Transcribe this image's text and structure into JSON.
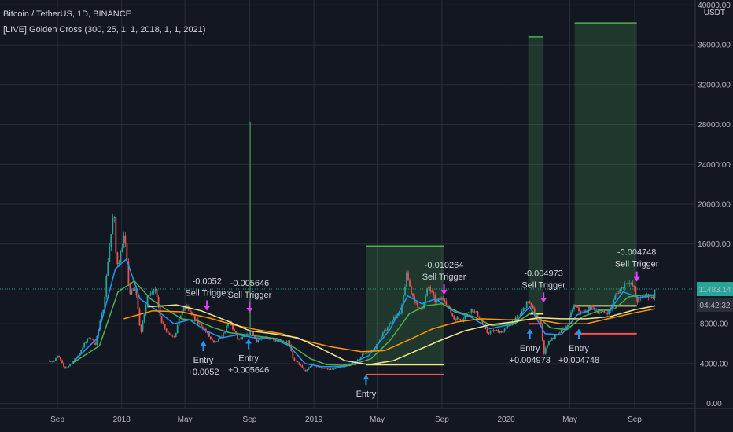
{
  "header": {
    "title": "Bitcoin / TetherUS, 1D, BINANCE",
    "indicator": "[LIVE] Golden Cross (300, 25, 1, 1, 2018, 1, 1, 2021)",
    "currency": "USDT"
  },
  "price_axis": {
    "ticks": [
      {
        "value": 40000,
        "label": "40000.00"
      },
      {
        "value": 36000,
        "label": "36000.00"
      },
      {
        "value": 32000,
        "label": "32000.00"
      },
      {
        "value": 28000,
        "label": "28000.00"
      },
      {
        "value": 24000,
        "label": "24000.00"
      },
      {
        "value": 20000,
        "label": "20000.00"
      },
      {
        "value": 16000,
        "label": "16000.00"
      },
      {
        "value": 8000,
        "label": "8000.00"
      },
      {
        "value": 4000,
        "label": "4000.00"
      },
      {
        "value": 0,
        "label": "0.00"
      }
    ],
    "current_price": {
      "value": 11483.14,
      "label": "11483.14",
      "color": "#26a69a"
    },
    "countdown": "04:42:32"
  },
  "time_axis": {
    "labels": [
      {
        "date": "2017-09-01",
        "label": "Sep"
      },
      {
        "date": "2018-01-01",
        "label": "2018"
      },
      {
        "date": "2018-05-01",
        "label": "May"
      },
      {
        "date": "2018-09-01",
        "label": "Sep"
      },
      {
        "date": "2019-01-01",
        "label": "2019"
      },
      {
        "date": "2019-05-01",
        "label": "May"
      },
      {
        "date": "2019-09-01",
        "label": "Sep"
      },
      {
        "date": "2020-01-01",
        "label": "2020"
      },
      {
        "date": "2020-05-01",
        "label": "May"
      },
      {
        "date": "2020-09-01",
        "label": "Sep"
      }
    ]
  },
  "chart_data": {
    "type": "candlestick",
    "x_range": [
      "2017-05-15",
      "2020-12-25"
    ],
    "ylim": [
      -500,
      40500
    ],
    "price_path": [
      [
        "2017-08-17",
        4300
      ],
      [
        "2017-08-25",
        4200
      ],
      [
        "2017-09-02",
        4800
      ],
      [
        "2017-09-15",
        3500
      ],
      [
        "2017-09-25",
        3900
      ],
      [
        "2017-10-10",
        4800
      ],
      [
        "2017-10-20",
        5800
      ],
      [
        "2017-11-01",
        6700
      ],
      [
        "2017-11-12",
        6000
      ],
      [
        "2017-11-28",
        9800
      ],
      [
        "2017-12-07",
        15000
      ],
      [
        "2017-12-12",
        17000
      ],
      [
        "2017-12-17",
        19500
      ],
      [
        "2017-12-22",
        14000
      ],
      [
        "2017-12-28",
        14500
      ],
      [
        "2018-01-06",
        17000
      ],
      [
        "2018-01-16",
        11000
      ],
      [
        "2018-01-28",
        11500
      ],
      [
        "2018-02-06",
        6900
      ],
      [
        "2018-02-20",
        11000
      ],
      [
        "2018-03-05",
        11500
      ],
      [
        "2018-03-18",
        8200
      ],
      [
        "2018-04-01",
        6900
      ],
      [
        "2018-04-12",
        6800
      ],
      [
        "2018-04-25",
        9300
      ],
      [
        "2018-05-05",
        9700
      ],
      [
        "2018-05-20",
        8400
      ],
      [
        "2018-06-05",
        7600
      ],
      [
        "2018-06-25",
        6000
      ],
      [
        "2018-07-10",
        6700
      ],
      [
        "2018-07-25",
        8200
      ],
      [
        "2018-08-10",
        6400
      ],
      [
        "2018-08-25",
        6700
      ],
      [
        "2018-09-05",
        7300
      ],
      [
        "2018-09-12",
        6300
      ],
      [
        "2018-10-01",
        6600
      ],
      [
        "2018-10-30",
        6300
      ],
      [
        "2018-11-14",
        6200
      ],
      [
        "2018-11-22",
        4500
      ],
      [
        "2018-12-05",
        3900
      ],
      [
        "2018-12-15",
        3200
      ],
      [
        "2018-12-28",
        3900
      ],
      [
        "2019-01-15",
        3600
      ],
      [
        "2019-02-05",
        3400
      ],
      [
        "2019-02-25",
        3800
      ],
      [
        "2019-03-20",
        4000
      ],
      [
        "2019-04-05",
        5000
      ],
      [
        "2019-04-25",
        5400
      ],
      [
        "2019-05-12",
        7000
      ],
      [
        "2019-05-30",
        8500
      ],
      [
        "2019-06-15",
        9000
      ],
      [
        "2019-06-26",
        12900
      ],
      [
        "2019-07-05",
        11200
      ],
      [
        "2019-07-17",
        9500
      ],
      [
        "2019-07-28",
        9800
      ],
      [
        "2019-08-06",
        11800
      ],
      [
        "2019-08-20",
        10200
      ],
      [
        "2019-09-05",
        10600
      ],
      [
        "2019-09-24",
        8500
      ],
      [
        "2019-10-10",
        8500
      ],
      [
        "2019-10-26",
        9500
      ],
      [
        "2019-11-10",
        8800
      ],
      [
        "2019-11-25",
        7100
      ],
      [
        "2019-12-10",
        7300
      ],
      [
        "2019-12-25",
        7200
      ],
      [
        "2020-01-10",
        8000
      ],
      [
        "2020-01-25",
        8700
      ],
      [
        "2020-02-12",
        10300
      ],
      [
        "2020-02-28",
        8700
      ],
      [
        "2020-03-08",
        8000
      ],
      [
        "2020-03-12",
        4800
      ],
      [
        "2020-03-20",
        6200
      ],
      [
        "2020-04-05",
        6800
      ],
      [
        "2020-04-25",
        7700
      ],
      [
        "2020-05-08",
        9800
      ],
      [
        "2020-05-25",
        9000
      ],
      [
        "2020-06-10",
        9700
      ],
      [
        "2020-06-28",
        9100
      ],
      [
        "2020-07-15",
        9200
      ],
      [
        "2020-07-28",
        11000
      ],
      [
        "2020-08-10",
        11800
      ],
      [
        "2020-08-17",
        12300
      ],
      [
        "2020-08-30",
        11700
      ],
      [
        "2020-09-05",
        10200
      ],
      [
        "2020-09-20",
        10900
      ],
      [
        "2020-10-05",
        10600
      ],
      [
        "2020-10-10",
        11483
      ]
    ],
    "series": [
      {
        "name": "",
        "color": "#2196f3",
        "values": [
          [
            "2017-10-01",
            4200
          ],
          [
            "2017-11-15",
            6500
          ],
          [
            "2017-12-20",
            13500
          ],
          [
            "2018-01-10",
            14500
          ],
          [
            "2018-02-05",
            10500
          ],
          [
            "2018-03-10",
            9300
          ],
          [
            "2018-04-10",
            8000
          ],
          [
            "2018-05-10",
            8400
          ],
          [
            "2018-06-10",
            7300
          ],
          [
            "2018-07-10",
            6600
          ],
          [
            "2018-08-10",
            6900
          ],
          [
            "2018-09-10",
            6600
          ],
          [
            "2018-10-15",
            6500
          ],
          [
            "2018-11-15",
            5800
          ],
          [
            "2018-12-15",
            4000
          ],
          [
            "2019-01-15",
            3700
          ],
          [
            "2019-03-01",
            3700
          ],
          [
            "2019-04-15",
            4800
          ],
          [
            "2019-05-25",
            7400
          ],
          [
            "2019-06-28",
            10800
          ],
          [
            "2019-07-25",
            10000
          ],
          [
            "2019-08-20",
            10500
          ],
          [
            "2019-09-25",
            9200
          ],
          [
            "2019-10-25",
            8700
          ],
          [
            "2019-12-01",
            7500
          ],
          [
            "2020-01-15",
            8000
          ],
          [
            "2020-02-15",
            9700
          ],
          [
            "2020-03-15",
            7000
          ],
          [
            "2020-04-15",
            6900
          ],
          [
            "2020-05-15",
            8900
          ],
          [
            "2020-06-15",
            9500
          ],
          [
            "2020-07-15",
            9300
          ],
          [
            "2020-08-10",
            11200
          ],
          [
            "2020-09-10",
            10600
          ],
          [
            "2020-10-10",
            10900
          ]
        ]
      },
      {
        "name": "",
        "color": "#4caf50",
        "values": [
          [
            "2017-10-01",
            4100
          ],
          [
            "2017-11-20",
            5800
          ],
          [
            "2017-12-25",
            11200
          ],
          [
            "2018-01-25",
            12300
          ],
          [
            "2018-02-25",
            10500
          ],
          [
            "2018-03-25",
            9500
          ],
          [
            "2018-04-25",
            8500
          ],
          [
            "2018-05-25",
            8300
          ],
          [
            "2018-06-25",
            7600
          ],
          [
            "2018-07-25",
            7100
          ],
          [
            "2018-08-25",
            6900
          ],
          [
            "2018-09-25",
            6700
          ],
          [
            "2018-10-25",
            6500
          ],
          [
            "2018-11-25",
            5600
          ],
          [
            "2018-12-25",
            4500
          ],
          [
            "2019-01-25",
            3900
          ],
          [
            "2019-03-10",
            3800
          ],
          [
            "2019-04-20",
            4500
          ],
          [
            "2019-05-25",
            6300
          ],
          [
            "2019-07-01",
            9000
          ],
          [
            "2019-08-01",
            9800
          ],
          [
            "2019-09-01",
            10000
          ],
          [
            "2019-10-01",
            9200
          ],
          [
            "2019-11-01",
            8700
          ],
          [
            "2019-12-05",
            7800
          ],
          [
            "2020-01-20",
            8100
          ],
          [
            "2020-02-20",
            9200
          ],
          [
            "2020-03-25",
            7600
          ],
          [
            "2020-04-25",
            7400
          ],
          [
            "2020-05-25",
            8700
          ],
          [
            "2020-06-25",
            9300
          ],
          [
            "2020-07-25",
            9500
          ],
          [
            "2020-08-20",
            10700
          ],
          [
            "2020-09-20",
            10900
          ],
          [
            "2020-10-10",
            10900
          ]
        ]
      },
      {
        "name": "",
        "color": "#ff9800",
        "values": [
          [
            "2018-01-05",
            8500
          ],
          [
            "2018-03-01",
            9300
          ],
          [
            "2018-04-25",
            9200
          ],
          [
            "2018-06-15",
            8600
          ],
          [
            "2018-08-01",
            7900
          ],
          [
            "2018-09-15",
            7400
          ],
          [
            "2018-11-01",
            7000
          ],
          [
            "2018-12-15",
            6300
          ],
          [
            "2019-02-01",
            5700
          ],
          [
            "2019-04-01",
            5200
          ],
          [
            "2019-05-15",
            5300
          ],
          [
            "2019-07-01",
            6400
          ],
          [
            "2019-08-15",
            7500
          ],
          [
            "2019-10-01",
            8200
          ],
          [
            "2019-11-15",
            8500
          ],
          [
            "2020-01-01",
            8400
          ],
          [
            "2020-03-01",
            8400
          ],
          [
            "2020-04-15",
            8000
          ],
          [
            "2020-06-01",
            8000
          ],
          [
            "2020-07-20",
            8600
          ],
          [
            "2020-09-01",
            9100
          ],
          [
            "2020-10-10",
            9500
          ]
        ]
      },
      {
        "name": "",
        "color": "#f0e68c",
        "values": [
          [
            "2018-02-20",
            9700
          ],
          [
            "2018-04-15",
            9900
          ],
          [
            "2018-06-01",
            9300
          ],
          [
            "2018-07-20",
            8300
          ],
          [
            "2018-09-01",
            7300
          ],
          [
            "2018-10-15",
            7000
          ],
          [
            "2018-12-01",
            6600
          ],
          [
            "2019-01-15",
            5500
          ],
          [
            "2019-03-01",
            4300
          ],
          [
            "2019-04-15",
            3900
          ],
          [
            "2019-06-01",
            4300
          ],
          [
            "2019-07-15",
            5300
          ],
          [
            "2019-09-01",
            6400
          ],
          [
            "2019-10-15",
            7300
          ],
          [
            "2019-12-01",
            7900
          ],
          [
            "2020-01-15",
            8200
          ],
          [
            "2020-03-01",
            8600
          ],
          [
            "2020-04-15",
            8500
          ],
          [
            "2020-06-01",
            8500
          ],
          [
            "2020-07-15",
            8700
          ],
          [
            "2020-09-01",
            9400
          ],
          [
            "2020-10-10",
            9800
          ]
        ]
      }
    ],
    "trade_zones": [
      {
        "start": "2019-04-10",
        "end": "2019-09-05",
        "bottom": 3900,
        "top": 15800,
        "target": 15800,
        "stop": 2900
      },
      {
        "start": "2020-02-12",
        "end": "2020-03-12",
        "bottom": 9000,
        "top": 36800,
        "target": 36800,
        "stop": 8000
      },
      {
        "start": "2020-05-10",
        "end": "2020-09-05",
        "bottom": 9800,
        "top": 38200,
        "target": 38200,
        "stop": 7000
      }
    ],
    "spike": {
      "date": "2018-09-02",
      "low": 7500,
      "high": 28300
    },
    "entries": [
      {
        "date": "2018-06-05",
        "price": 6200,
        "label": "Entry",
        "value": "+0.0052"
      },
      {
        "date": "2018-08-30",
        "price": 6400,
        "label": "Entry",
        "value": "+0.005646"
      },
      {
        "date": "2019-04-10",
        "price": 2800,
        "label": "Entry",
        "value": ""
      },
      {
        "date": "2020-02-15",
        "price": 7400,
        "label": "Entry",
        "value": "+0.004973"
      },
      {
        "date": "2020-05-18",
        "price": 7400,
        "label": "Entry",
        "value": "+0.004748"
      }
    ],
    "sell_triggers": [
      {
        "date": "2018-06-12",
        "price": 9400,
        "label": "Sell Trigger",
        "value": "-0.0052"
      },
      {
        "date": "2018-09-01",
        "price": 9200,
        "label": "Sell Trigger",
        "value": "-0.005646"
      },
      {
        "date": "2019-09-05",
        "price": 11000,
        "label": "Sell Trigger",
        "value": "-0.010264"
      },
      {
        "date": "2020-03-12",
        "price": 10200,
        "label": "Sell Trigger",
        "value": "-0.004973"
      },
      {
        "date": "2020-09-05",
        "price": 12300,
        "label": "Sell Trigger",
        "value": "-0.004748"
      }
    ]
  }
}
